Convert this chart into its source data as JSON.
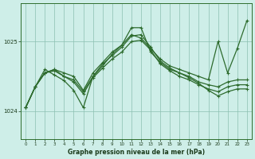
{
  "title": "Graphe pression niveau de la mer (hPa)",
  "bg_color": "#ceeee8",
  "grid_color": "#8bbfb0",
  "line_color": "#2d6b2d",
  "xlim": [
    -0.5,
    23.5
  ],
  "ylim": [
    1023.6,
    1025.55
  ],
  "yticks": [
    1024,
    1025
  ],
  "xticks": [
    0,
    1,
    2,
    3,
    4,
    5,
    6,
    7,
    8,
    9,
    10,
    11,
    12,
    13,
    14,
    15,
    16,
    17,
    18,
    19,
    20,
    21,
    22,
    23
  ],
  "series": [
    [
      1024.05,
      1024.35,
      1024.55,
      1024.6,
      1024.55,
      1024.5,
      1024.3,
      1024.55,
      1024.7,
      1024.85,
      1024.95,
      1025.1,
      1025.05,
      1024.9,
      1024.75,
      1024.65,
      1024.6,
      1024.55,
      1024.5,
      1024.45,
      1025.0,
      1024.55,
      1024.9,
      1025.3
    ],
    [
      1024.05,
      1024.35,
      1024.55,
      1024.6,
      1024.5,
      1024.45,
      1024.28,
      1024.5,
      1024.65,
      1024.82,
      1024.95,
      1025.2,
      1025.2,
      1024.85,
      1024.7,
      1024.6,
      1024.55,
      1024.5,
      1024.42,
      1024.38,
      1024.35,
      1024.42,
      1024.45,
      1024.45
    ],
    [
      1024.05,
      1024.35,
      1024.55,
      1024.58,
      1024.5,
      1024.42,
      1024.25,
      1024.48,
      1024.62,
      1024.75,
      1024.85,
      1025.0,
      1025.02,
      1024.88,
      1024.68,
      1024.58,
      1024.5,
      1024.45,
      1024.38,
      1024.32,
      1024.28,
      1024.35,
      1024.38,
      1024.38
    ],
    [
      1024.05,
      1024.35,
      1024.6,
      1024.52,
      1024.44,
      1024.3,
      1024.05,
      1024.5,
      1024.68,
      1024.8,
      1024.92,
      1025.08,
      1025.1,
      1024.92,
      1024.72,
      1024.62,
      1024.55,
      1024.48,
      1024.4,
      1024.3,
      1024.22,
      1024.28,
      1024.32,
      1024.32
    ]
  ]
}
